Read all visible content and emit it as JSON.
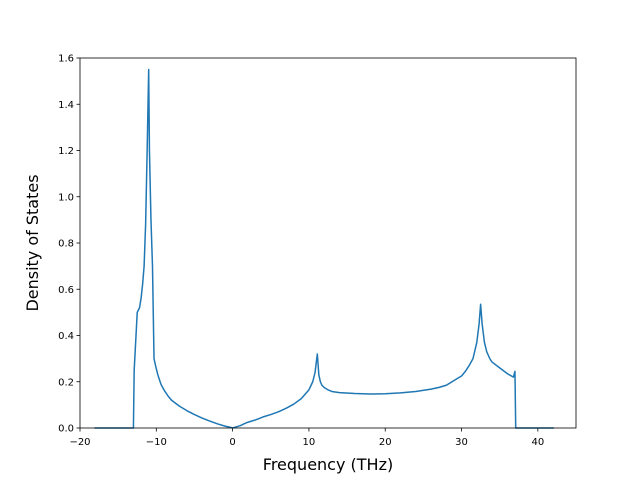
{
  "chart_data": {
    "type": "line",
    "title": "",
    "xlabel": "Frequency (THz)",
    "ylabel": "Density of States",
    "xlim": [
      -20,
      45
    ],
    "ylim": [
      0,
      1.6
    ],
    "xticks": [
      -20,
      -10,
      0,
      10,
      20,
      30,
      40
    ],
    "yticks": [
      0.0,
      0.2,
      0.4,
      0.6,
      0.8,
      1.0,
      1.2,
      1.4,
      1.6
    ],
    "xtick_labels": [
      "−20",
      "−10",
      "0",
      "10",
      "20",
      "30",
      "40"
    ],
    "ytick_labels": [
      "0.0",
      "0.2",
      "0.4",
      "0.6",
      "0.8",
      "1.0",
      "1.2",
      "1.4",
      "1.6"
    ],
    "grid": false,
    "legend": "none",
    "series_color": "#1f77b4",
    "series": [
      {
        "x": [
          -18,
          -13.0,
          -12.9,
          -12.5,
          -12.2,
          -12.0,
          -11.8,
          -11.6,
          -11.4,
          -11.2,
          -11.0,
          -10.9,
          -10.7,
          -10.5,
          -10.3,
          -10.1,
          -9.8,
          -9.4,
          -9.0,
          -8.5,
          -8.0,
          -7.0,
          -6.0,
          -5.0,
          -4.0,
          -3.0,
          -2.0,
          -1.0,
          -0.2,
          0.0,
          0.5,
          1.0,
          1.5,
          2.0,
          3.0,
          4.0,
          5.0,
          6.0,
          7.0,
          8.0,
          9.0,
          10.0,
          10.5,
          10.8,
          11.1,
          11.3,
          11.5,
          11.7,
          12.0,
          12.5,
          13.0,
          14.0,
          16.0,
          18.0,
          20.0,
          22.0,
          24.0,
          26.0,
          27.0,
          28.0,
          29.0,
          29.5,
          30.0,
          30.5,
          31.0,
          31.5,
          32.0,
          32.3,
          32.5,
          32.7,
          33.0,
          33.3,
          33.7,
          34.0,
          35.0,
          36.0,
          36.8,
          37.0,
          37.1,
          37.3,
          38.0,
          42.0
        ],
        "y": [
          0,
          0,
          0.25,
          0.5,
          0.52,
          0.56,
          0.62,
          0.7,
          0.88,
          1.2,
          1.55,
          1.2,
          0.9,
          0.7,
          0.3,
          0.27,
          0.23,
          0.19,
          0.165,
          0.14,
          0.12,
          0.095,
          0.075,
          0.058,
          0.043,
          0.03,
          0.018,
          0.008,
          0.002,
          0.0,
          0.005,
          0.01,
          0.018,
          0.025,
          0.035,
          0.048,
          0.058,
          0.07,
          0.085,
          0.103,
          0.127,
          0.165,
          0.2,
          0.24,
          0.32,
          0.23,
          0.2,
          0.185,
          0.175,
          0.165,
          0.158,
          0.153,
          0.149,
          0.147,
          0.148,
          0.152,
          0.158,
          0.168,
          0.175,
          0.185,
          0.205,
          0.215,
          0.225,
          0.245,
          0.27,
          0.3,
          0.37,
          0.45,
          0.535,
          0.45,
          0.37,
          0.33,
          0.3,
          0.285,
          0.26,
          0.235,
          0.22,
          0.245,
          0.0,
          0.0,
          0.0,
          0.0
        ]
      }
    ]
  }
}
